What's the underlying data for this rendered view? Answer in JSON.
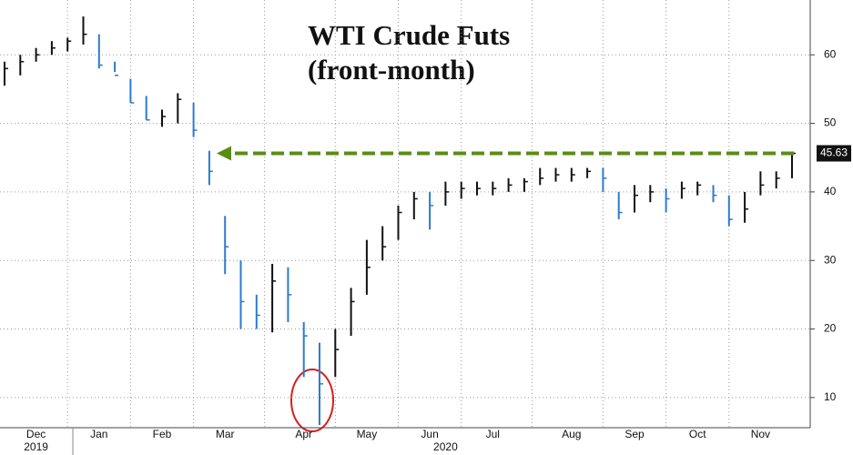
{
  "chart_data": {
    "type": "hlc",
    "title": "WTI Crude Futs",
    "subtitle": "(front-month)",
    "categories": [
      null,
      null,
      "Dec",
      null,
      null,
      null,
      "Jan",
      null,
      null,
      null,
      "Feb",
      null,
      null,
      null,
      "Mar",
      null,
      null,
      null,
      null,
      "Apr",
      null,
      null,
      null,
      "May",
      null,
      null,
      null,
      "Jun",
      null,
      null,
      null,
      "Jul",
      null,
      null,
      null,
      null,
      "Aug",
      null,
      null,
      null,
      "Sep",
      null,
      null,
      null,
      "Oct",
      null,
      null,
      null,
      "Nov",
      null,
      null
    ],
    "year_labels": [
      null,
      null,
      "2019",
      null,
      null,
      null,
      null,
      null,
      null,
      null,
      null,
      null,
      null,
      null,
      null,
      null,
      null,
      null,
      null,
      null,
      null,
      null,
      null,
      null,
      null,
      null,
      null,
      null,
      "2020",
      null,
      null,
      null,
      null,
      null,
      null,
      null,
      null,
      null,
      null,
      null,
      null,
      null,
      null,
      null,
      null,
      null,
      null,
      null,
      null,
      null,
      null
    ],
    "high": [
      59,
      60,
      61,
      62,
      62.5,
      65.6,
      63,
      59,
      56.5,
      54,
      52,
      54.4,
      53,
      46,
      36.5,
      30,
      25,
      29.5,
      29,
      21,
      18,
      20,
      26,
      33,
      35,
      38,
      40,
      40,
      41.5,
      41.5,
      41.5,
      41.5,
      42,
      42,
      43.5,
      43.5,
      43.5,
      43.5,
      43.5,
      40,
      41,
      41,
      40.5,
      41.5,
      41.5,
      41,
      39.5,
      40,
      43,
      43,
      45.9
    ],
    "low": [
      55.5,
      57,
      59,
      60,
      60.5,
      61.5,
      58,
      57.5,
      53,
      50.5,
      49.5,
      50,
      48,
      41,
      28,
      20,
      20,
      19.5,
      21,
      13,
      6,
      13,
      19,
      25,
      30,
      33,
      36,
      34.5,
      38,
      39,
      39.5,
      39.5,
      40,
      40,
      41,
      41.5,
      41.5,
      42,
      40,
      36,
      37,
      38.5,
      37,
      39,
      39.5,
      38.5,
      35,
      35.5,
      39.5,
      40.5,
      42
    ],
    "close": [
      58,
      59,
      60,
      61,
      62,
      63,
      58.5,
      57,
      53,
      50.5,
      51,
      53.5,
      49,
      43,
      32,
      24,
      22,
      27,
      25,
      19,
      12,
      17,
      24,
      29,
      32,
      37,
      39,
      38,
      40,
      40.5,
      40.5,
      40.5,
      41,
      41.5,
      42,
      42.5,
      42.5,
      43,
      42,
      37,
      39.5,
      40,
      39,
      40.5,
      41,
      39.5,
      36,
      37.5,
      41,
      42,
      45.63
    ],
    "up_color": "#111111",
    "down_color": "#2b7bd0",
    "annotation_color": "#5b8c16",
    "ylim": [
      5.6,
      68
    ],
    "yticks": [
      10,
      20,
      30,
      40,
      50,
      60
    ],
    "grid": true
  }
}
